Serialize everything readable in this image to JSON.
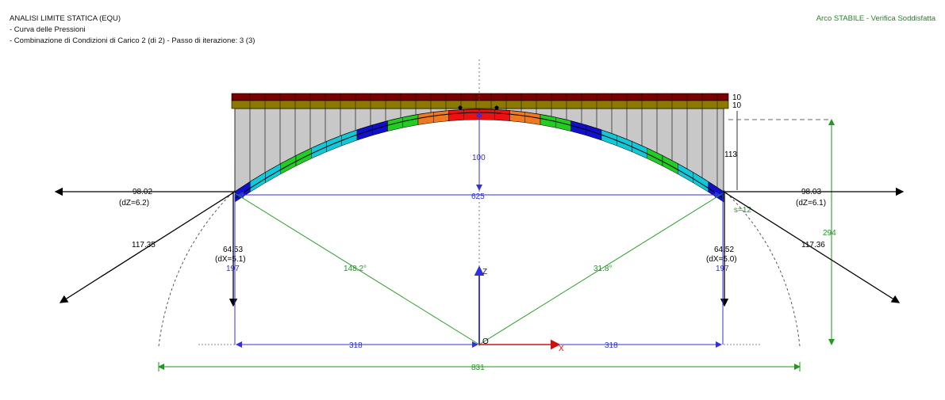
{
  "header": {
    "title": "ANALISI LIMITE STATICA (EQU)",
    "line1": "- Curva delle Pressioni",
    "line2": "- Combinazione di Condizioni di Carico 2 (di 2) - Passo di iterazione: 3  (3)"
  },
  "status": {
    "text": "Arco STABILE - Verifica Soddisfatta",
    "color": "#1e8a1e"
  },
  "labels": {
    "load_top": "10",
    "load_mid": "10",
    "height_fill": "113",
    "rise": "100",
    "span_inner": "625",
    "thickness": "s=12",
    "total_height": "294",
    "left_h_force": "98.02",
    "left_h_dz": "(dZ=6.2)",
    "right_h_force": "98.03",
    "right_h_dz": "(dZ=6.1)",
    "left_inclined": "117.35",
    "right_inclined": "117.36",
    "left_v_force": "64.53",
    "left_v_dx": "(dX=5.1)",
    "right_v_force": "64.52",
    "right_v_dx": "(dX=5.0)",
    "left_impost_h": "197",
    "right_impost_h": "197",
    "angle_left": "148.2°",
    "angle_right": "31.8°",
    "axis_z": "Z",
    "axis_x": "X",
    "origin": "O",
    "half_span_left": "318",
    "half_span_right": "318",
    "total_span": "831"
  },
  "colors": {
    "load_top": "#7a0000",
    "load_mid": "#8c7a00",
    "fill": "#c8c8c8",
    "dim_blue": "#3030e0",
    "dim_green": "#1e9a1e",
    "axis_red": "#d01010",
    "voussoir_crown": "#ee1111",
    "voussoir_orange": "#f07820",
    "voussoir_green": "#22cc22",
    "voussoir_blue": "#1010cc",
    "voussoir_cyan": "#11c8d8"
  }
}
